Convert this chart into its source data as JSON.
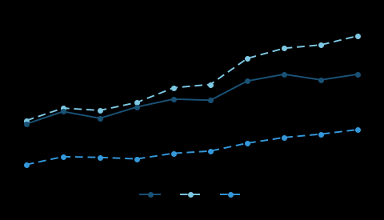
{
  "background_color": "#000000",
  "line1": {
    "color": "#1a5276",
    "style": "solid",
    "marker": "o",
    "marker_color": "#1a5276",
    "values": [
      5.0,
      5.55,
      5.25,
      5.75,
      6.1,
      6.05,
      6.9,
      7.2,
      6.95,
      7.2
    ]
  },
  "line2": {
    "color": "#7ec8e3",
    "style": "dashed",
    "marker": "o",
    "marker_color": "#7ec8e3",
    "values": [
      5.15,
      5.7,
      5.6,
      5.95,
      6.6,
      6.75,
      7.9,
      8.35,
      8.5,
      8.9
    ]
  },
  "line3": {
    "color": "#3498db",
    "style": "dashed",
    "marker": "o",
    "marker_color": "#3498db",
    "values": [
      3.2,
      3.55,
      3.52,
      3.45,
      3.7,
      3.8,
      4.15,
      4.4,
      4.55,
      4.75
    ]
  },
  "x_points": [
    0,
    1,
    2,
    3,
    4,
    5,
    6,
    7,
    8,
    9
  ],
  "ylim": [
    2.5,
    10.0
  ]
}
